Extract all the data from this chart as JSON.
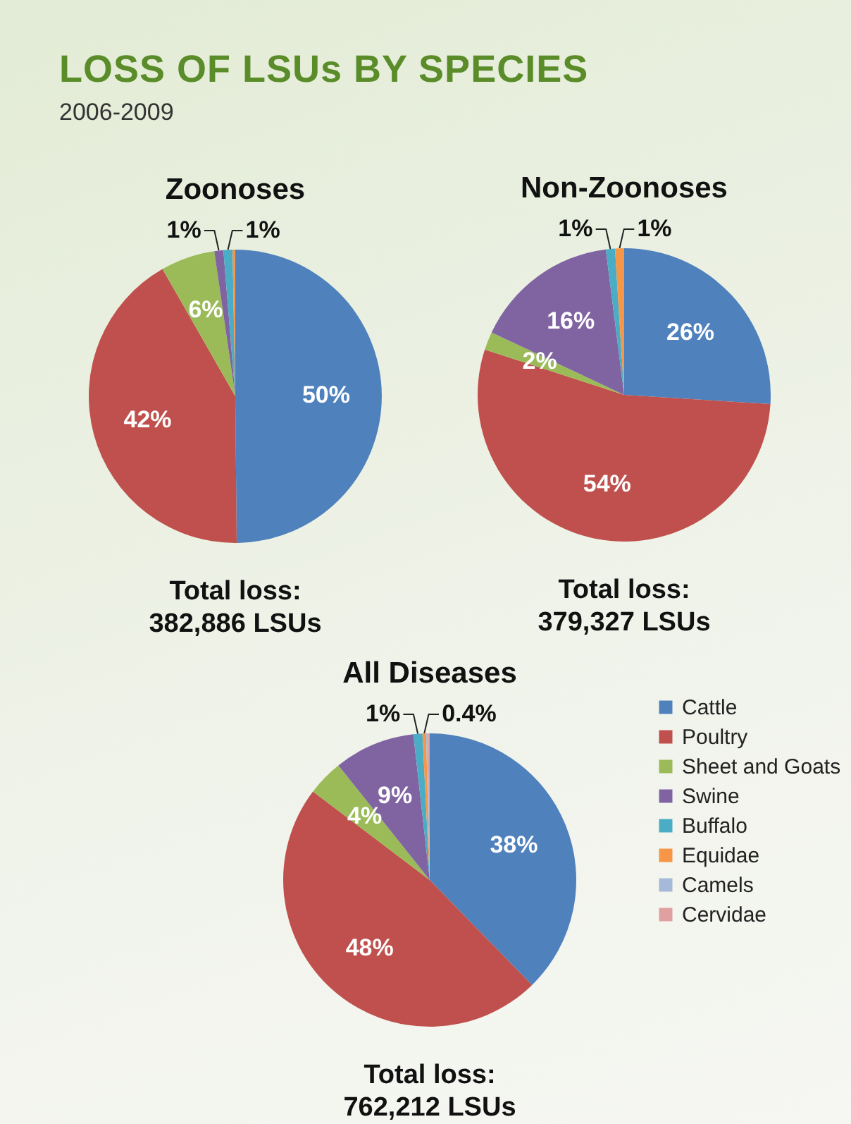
{
  "chart_data": [
    {
      "type": "other",
      "title": "LOSS OF LSUs BY SPECIES",
      "subtitle": "2006-2009"
    },
    {
      "type": "pie",
      "title": "Zoonoses",
      "categories": [
        null,
        null,
        null,
        null,
        null,
        null
      ],
      "values": [
        50,
        42,
        6,
        1,
        1,
        0.3
      ],
      "value_labels": [
        "50%",
        "42%",
        "6%",
        "1%",
        "1%",
        null
      ],
      "colors": [
        "#4f81bd",
        "#c0504d",
        "#9bbb59",
        "#8064a2",
        "#4bacc6",
        "#f79646"
      ],
      "legend": false,
      "annotations": [
        "Total loss:",
        "382,886 LSUs"
      ]
    },
    {
      "type": "pie",
      "title": "Non-Zoonoses",
      "categories": [
        null,
        null,
        null,
        null,
        null,
        null
      ],
      "values": [
        26,
        54,
        2,
        16,
        1,
        1
      ],
      "value_labels": [
        "26%",
        "54%",
        "2%",
        "16%",
        "1%",
        "1%"
      ],
      "colors": [
        "#4f81bd",
        "#c0504d",
        "#9bbb59",
        "#8064a2",
        "#4bacc6",
        "#f79646"
      ],
      "legend": false,
      "annotations": [
        "Total loss:",
        "379,327 LSUs"
      ]
    },
    {
      "type": "pie",
      "title": "All Diseases",
      "categories": [
        "Cattle",
        "Poultry",
        "Sheet and Goats",
        "Swine",
        "Buffalo",
        "Equidae",
        "Camels",
        "Cervidae"
      ],
      "values": [
        38,
        48,
        4,
        9,
        1,
        0.4,
        0.2,
        0.2
      ],
      "value_labels": [
        "38%",
        "48%",
        "4%",
        "9%",
        "1%",
        "0.4%",
        null,
        null
      ],
      "colors": [
        "#4f81bd",
        "#c0504d",
        "#9bbb59",
        "#8064a2",
        "#4bacc6",
        "#f79646",
        "#a5b9d8",
        "#e0a0a0"
      ],
      "legend": "right",
      "annotations": [
        "Total loss:",
        "762,212  LSUs"
      ]
    }
  ]
}
